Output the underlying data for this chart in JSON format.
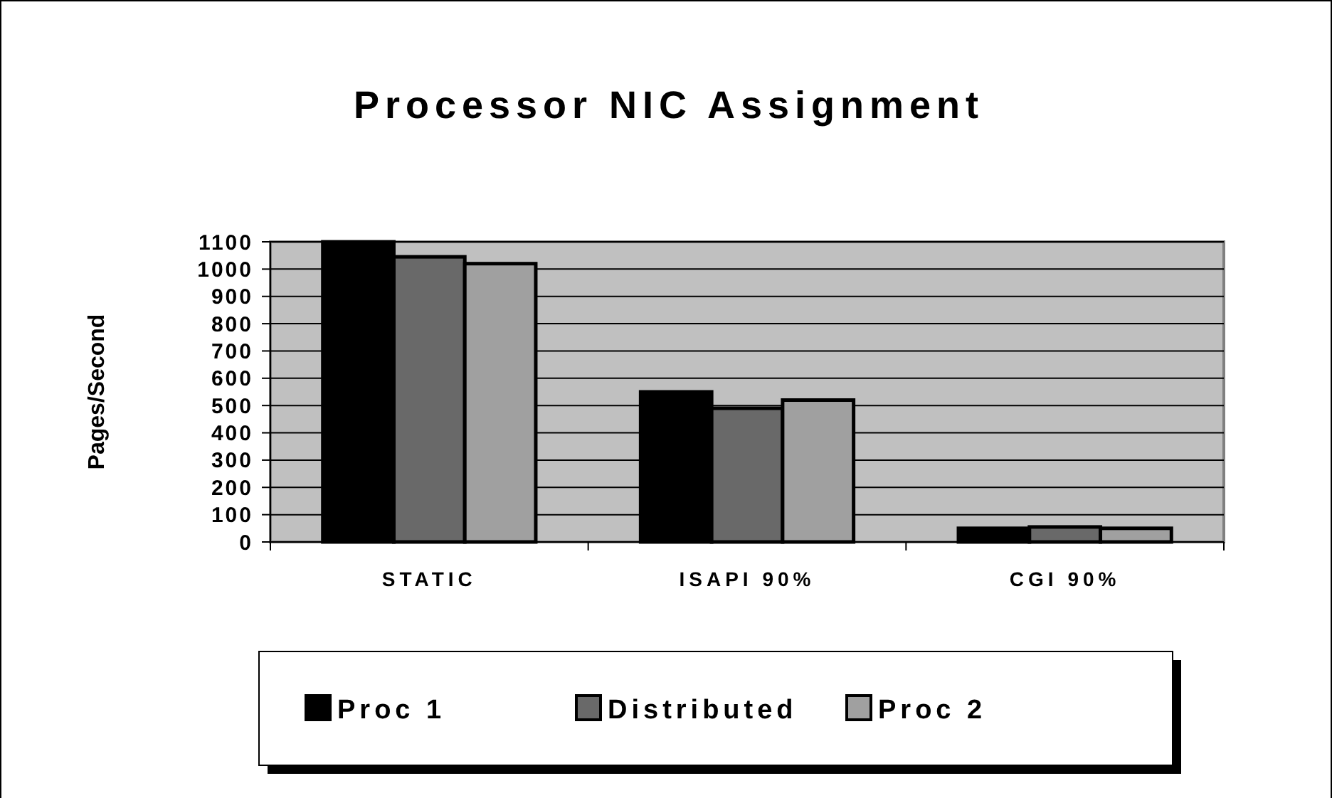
{
  "chart_data": {
    "type": "bar",
    "title": "Processor NIC Assignment",
    "ylabel": "Pages/Second",
    "categories": [
      "STATIC",
      "ISAPI 90%",
      "CGI 90%"
    ],
    "series": [
      {
        "name": "Proc 1",
        "color": "#000000",
        "values": [
          1100,
          550,
          50
        ]
      },
      {
        "name": "Distributed",
        "color": "#696969",
        "values": [
          1045,
          490,
          55
        ]
      },
      {
        "name": "Proc 2",
        "color": "#a0a0a0",
        "values": [
          1020,
          520,
          50
        ]
      }
    ],
    "ylim": [
      0,
      1100
    ],
    "yticks": [
      0,
      100,
      200,
      300,
      400,
      500,
      600,
      700,
      800,
      900,
      1000,
      1100
    ],
    "grid": "y",
    "legend": "bottom"
  }
}
